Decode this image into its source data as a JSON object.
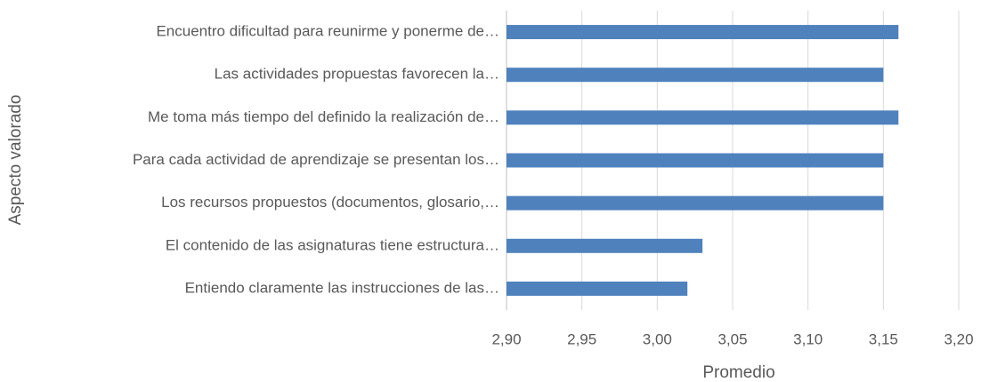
{
  "chart_data": {
    "type": "bar",
    "orientation": "horizontal",
    "categories": [
      "Encuentro dificultad para reunirme y ponerme de…",
      "Las actividades propuestas favorecen la…",
      "Me toma más tiempo del definido la realización de…",
      "Para cada actividad de aprendizaje se presentan los…",
      "Los recursos propuestos (documentos,  glosario,…",
      "El contenido de las asignaturas tiene estructura…",
      "Entiendo claramente las instrucciones de las…"
    ],
    "values": [
      3.16,
      3.15,
      3.16,
      3.15,
      3.15,
      3.03,
      3.02
    ],
    "color": "#4f81bd",
    "x_label": "Promedio",
    "y_label": "Aspecto valorado",
    "xlim": [
      2.9,
      3.2
    ],
    "xticks": [
      {
        "value": 2.9,
        "label": "2,90"
      },
      {
        "value": 2.95,
        "label": "2,95"
      },
      {
        "value": 3.0,
        "label": "3,00"
      },
      {
        "value": 3.05,
        "label": "3,05"
      },
      {
        "value": 3.1,
        "label": "3,10"
      },
      {
        "value": 3.15,
        "label": "3,15"
      },
      {
        "value": 3.2,
        "label": "3,20"
      }
    ],
    "grid": true
  }
}
